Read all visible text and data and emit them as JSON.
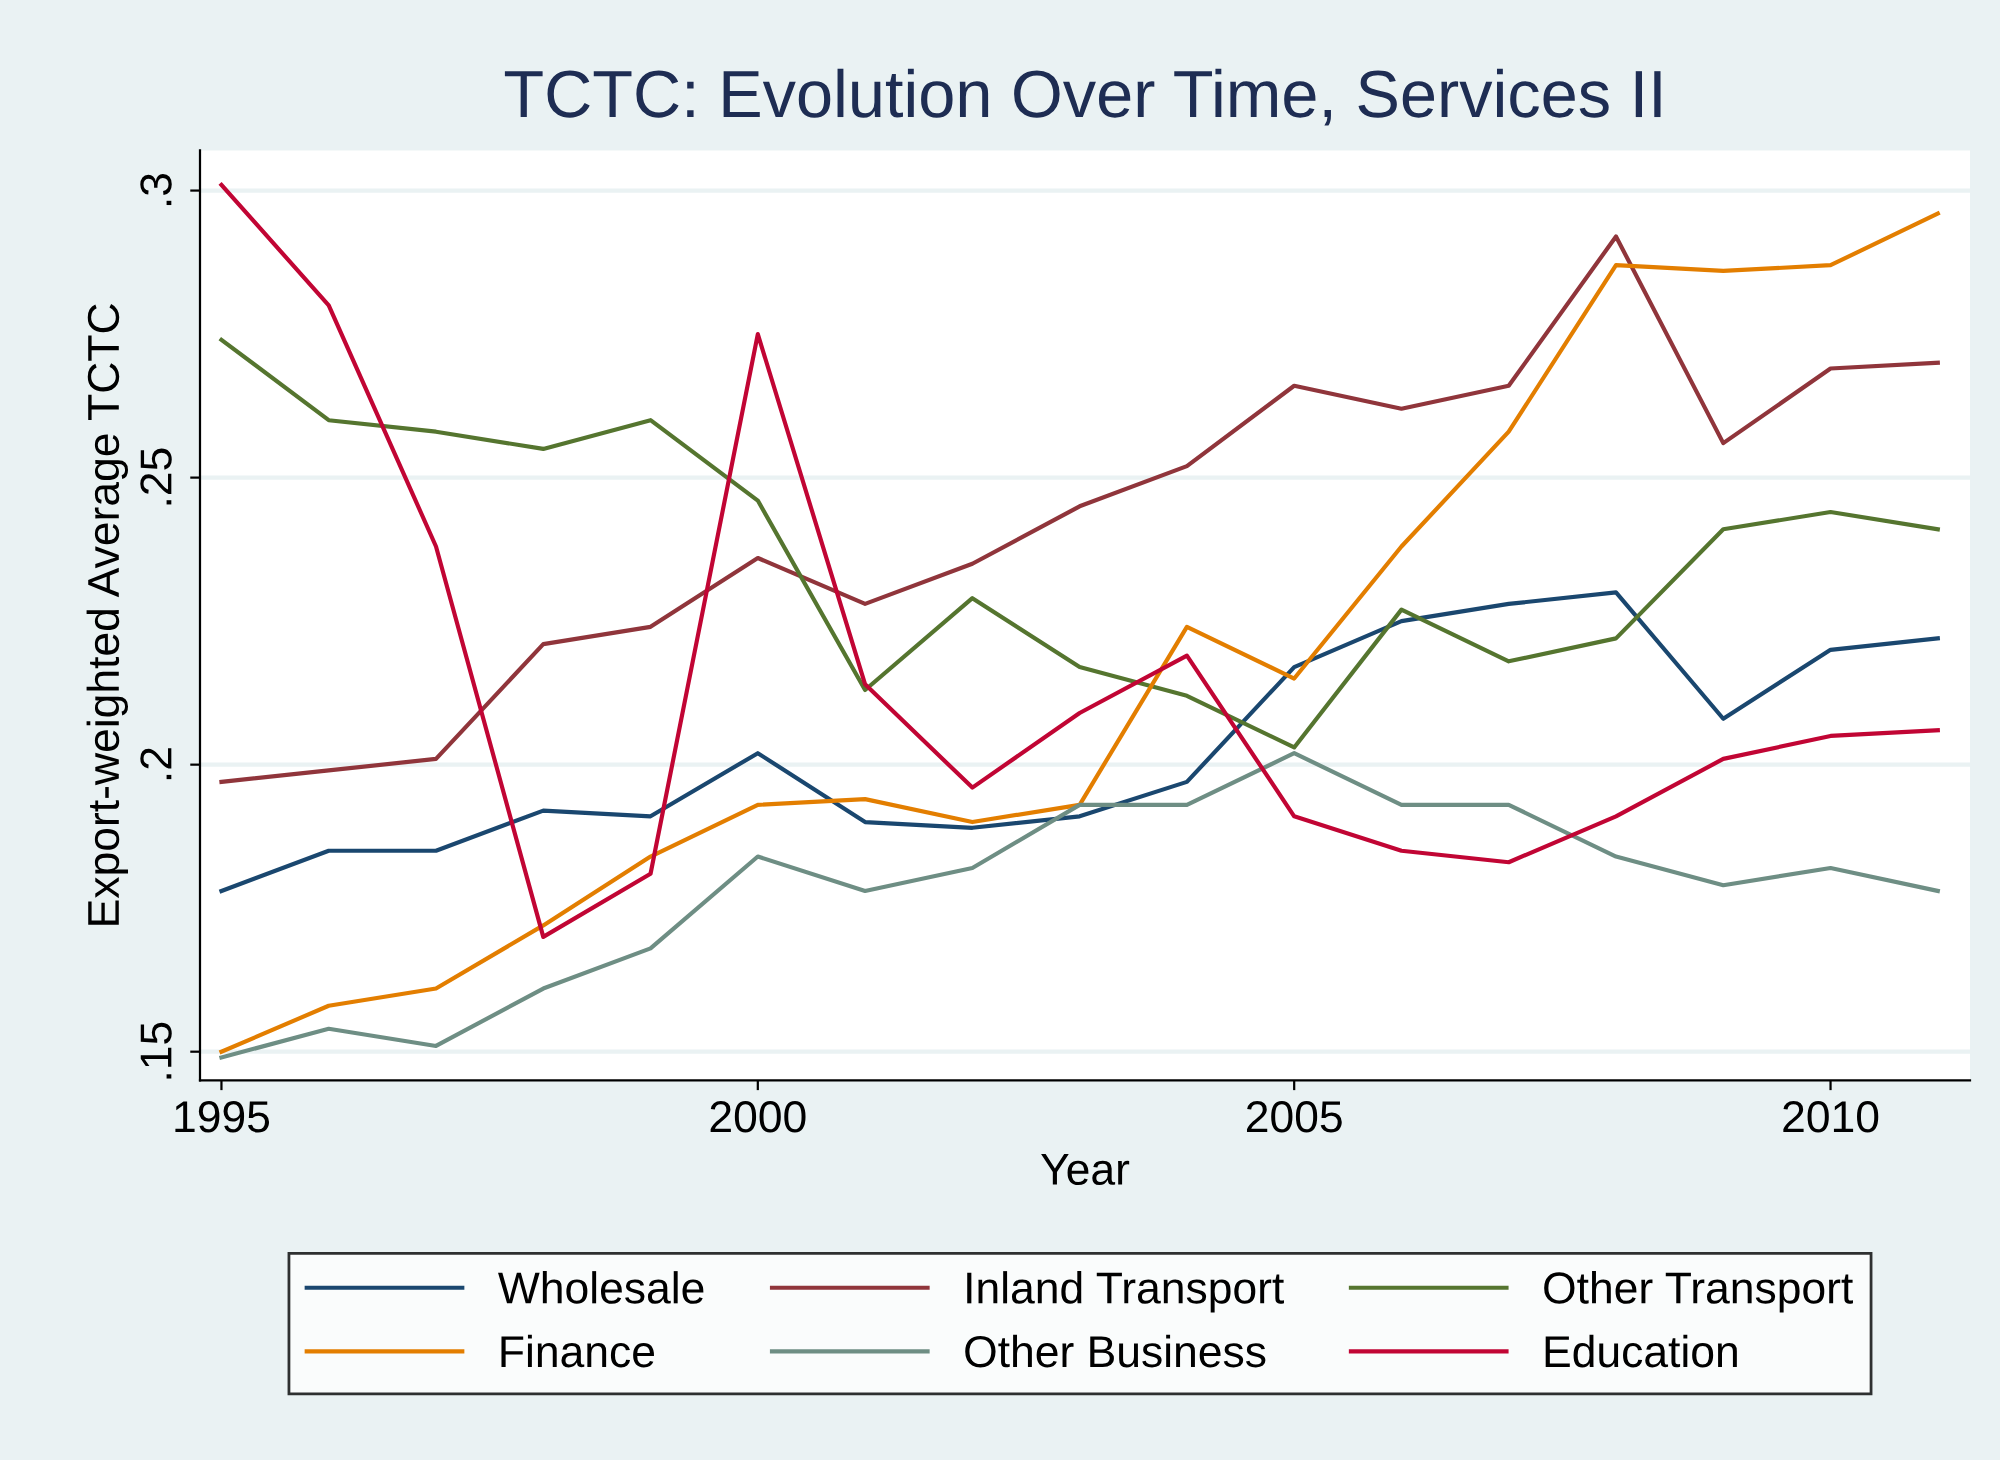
{
  "chart_data": {
    "type": "line",
    "title": "TCTC: Evolution Over Time, Services II",
    "xlabel": "Year",
    "ylabel": "Export-weighted Average TCTC",
    "x": [
      1995,
      1996,
      1997,
      1998,
      1999,
      2000,
      2001,
      2002,
      2003,
      2004,
      2005,
      2006,
      2007,
      2008,
      2009,
      2010,
      2011
    ],
    "series": [
      {
        "name": "Wholesale",
        "color": "#1a476f",
        "values": [
          0.178,
          0.185,
          0.185,
          0.192,
          0.191,
          0.202,
          0.19,
          0.189,
          0.191,
          0.197,
          0.217,
          0.225,
          0.228,
          0.23,
          0.208,
          0.22,
          0.222
        ]
      },
      {
        "name": "Inland Transport",
        "color": "#90353b",
        "values": [
          0.197,
          0.199,
          0.201,
          0.221,
          0.224,
          0.236,
          0.228,
          0.235,
          0.245,
          0.252,
          0.266,
          0.262,
          0.266,
          0.292,
          0.256,
          0.269,
          0.27
        ]
      },
      {
        "name": "Other Transport",
        "color": "#55752f",
        "values": [
          0.274,
          0.26,
          0.258,
          0.255,
          0.26,
          0.246,
          0.213,
          0.229,
          0.217,
          0.212,
          0.203,
          0.227,
          0.218,
          0.222,
          0.241,
          0.244,
          0.241
        ]
      },
      {
        "name": "Finance",
        "color": "#e37e00",
        "values": [
          0.15,
          0.158,
          0.161,
          0.172,
          0.184,
          0.193,
          0.194,
          0.19,
          0.193,
          0.224,
          0.215,
          0.238,
          0.258,
          0.287,
          0.286,
          0.287,
          0.296
        ]
      },
      {
        "name": "Other Business",
        "color": "#6e8e84",
        "values": [
          0.149,
          0.154,
          0.151,
          0.161,
          0.168,
          0.184,
          0.178,
          0.182,
          0.193,
          0.193,
          0.202,
          0.193,
          0.193,
          0.184,
          0.179,
          0.182,
          0.178
        ]
      },
      {
        "name": "Education",
        "color": "#c10534",
        "values": [
          0.301,
          0.28,
          0.238,
          0.17,
          0.181,
          0.275,
          0.214,
          0.196,
          0.209,
          0.219,
          0.191,
          0.185,
          0.183,
          0.191,
          0.201,
          0.205,
          0.206
        ]
      }
    ],
    "xlim": [
      1994.8,
      2011.3
    ],
    "ylim": [
      0.145,
      0.307
    ],
    "xticks": [
      1995,
      2000,
      2005,
      2010
    ],
    "yticks": [
      {
        "value": 0.15,
        "label": ".15"
      },
      {
        "value": 0.2,
        "label": ".2"
      },
      {
        "value": 0.25,
        "label": ".25"
      },
      {
        "value": 0.3,
        "label": ".3"
      }
    ],
    "grid": "y",
    "legend": "bottom",
    "marker": "none",
    "line_style": "solid"
  }
}
